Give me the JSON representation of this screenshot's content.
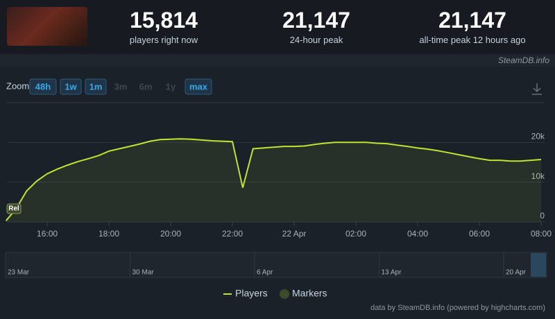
{
  "header": {
    "stats": [
      {
        "value": "15,814",
        "label": "players right now"
      },
      {
        "value": "21,147",
        "label": "24-hour peak"
      },
      {
        "value": "21,147",
        "label": "all-time peak 12 hours ago"
      }
    ],
    "source": "SteamDB.info"
  },
  "zoom": {
    "label": "Zoom",
    "buttons": [
      {
        "label": "48h",
        "enabled": true
      },
      {
        "label": "1w",
        "enabled": true
      },
      {
        "label": "1m",
        "enabled": true
      },
      {
        "label": "3m",
        "enabled": false
      },
      {
        "label": "6m",
        "enabled": false
      },
      {
        "label": "1y",
        "enabled": false
      },
      {
        "label": "max",
        "enabled": true
      }
    ]
  },
  "navigator": {
    "labels": [
      "23 Mar",
      "30 Mar",
      "6 Apr",
      "13 Apr",
      "20 Apr"
    ]
  },
  "credits": "data by SteamDB.info (powered by highcharts.com)",
  "chart_data": {
    "type": "line",
    "categories": [
      null,
      null,
      null,
      null,
      "16:00",
      null,
      null,
      null,
      null,
      null,
      "18:00",
      null,
      null,
      null,
      null,
      null,
      "20:00",
      null,
      null,
      null,
      null,
      null,
      "22:00",
      null,
      null,
      null,
      null,
      null,
      "22 Apr",
      null,
      null,
      null,
      null,
      null,
      "02:00",
      null,
      null,
      null,
      null,
      null,
      "04:00",
      null,
      null,
      null,
      null,
      null,
      "06:00",
      null,
      null,
      null,
      null,
      null,
      "08:00"
    ],
    "series": [
      {
        "name": "Players",
        "color": "#bfe530",
        "values": [
          300,
          3400,
          7800,
          10300,
          12100,
          13300,
          14300,
          15200,
          15900,
          16700,
          17800,
          18400,
          19000,
          19600,
          20300,
          20700,
          20800,
          20900,
          20800,
          20600,
          20400,
          20300,
          20200,
          8600,
          18400,
          18600,
          18800,
          19000,
          19000,
          19100,
          19500,
          19800,
          20000,
          20000,
          20000,
          20000,
          19800,
          19700,
          19300,
          19000,
          18600,
          18300,
          17900,
          17400,
          16900,
          16400,
          15900,
          15500,
          15500,
          15300,
          15300,
          15500,
          15700
        ]
      }
    ],
    "markers": {
      "name": "Markers",
      "color": "#3e4a2c"
    },
    "annotations": [
      {
        "label": "Rel"
      }
    ],
    "ylim": [
      0,
      30000
    ],
    "yticks": [
      0,
      {
        "value": 10000,
        "label": "10k"
      },
      {
        "value": 20000,
        "label": "20k"
      }
    ],
    "grid": true
  }
}
